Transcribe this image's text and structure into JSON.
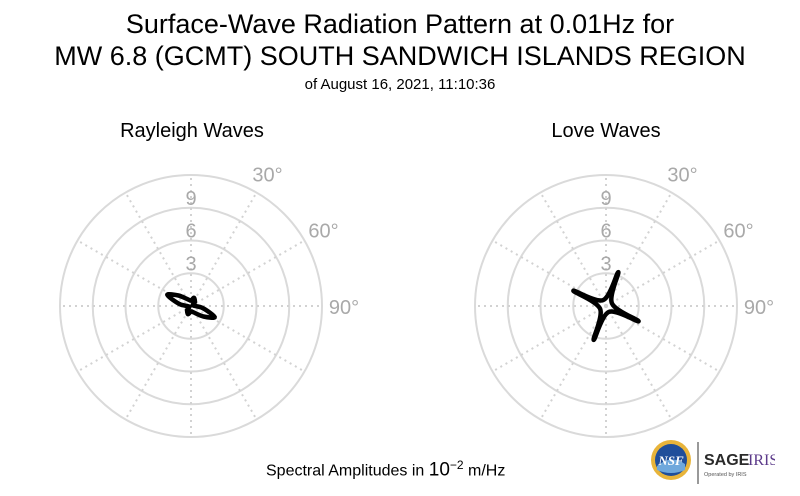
{
  "title": {
    "line1": "Surface-Wave Radiation Pattern at 0.01Hz for",
    "line2": "MW 6.8 (GCMT) SOUTH SANDWICH ISLANDS REGION",
    "line3": "of August 16, 2021, 11:10:36"
  },
  "footer": {
    "prefix": "Spectral Amplitudes in ",
    "base": "10",
    "exponent": "−2",
    "unit": " m/Hz"
  },
  "logos": {
    "nsf": "NSF",
    "sage": "SAGE",
    "iris": "IRIS",
    "operated": "Operated by IRIS"
  },
  "chart_data": [
    {
      "type": "polar",
      "title": "Rayleigh Waves",
      "radial_ticks": [
        3,
        6,
        9
      ],
      "radial_tick_labels": [
        "3",
        "6",
        "9"
      ],
      "angle_tick_labels": [
        "30°",
        "60°",
        "90°"
      ],
      "angle_ticks_deg": [
        30,
        60,
        90
      ],
      "rmax": 12,
      "grid": true,
      "series": [
        {
          "values": [
            {
              "azimuth": 0,
              "amplitude": 0.5
            },
            {
              "azimuth": 20,
              "amplitude": 0.8
            },
            {
              "azimuth": 45,
              "amplitude": 0.5
            },
            {
              "azimuth": 75,
              "amplitude": 0.2
            },
            {
              "azimuth": 100,
              "amplitude": 1.1
            },
            {
              "azimuth": 115,
              "amplitude": 2.4
            },
            {
              "azimuth": 130,
              "amplitude": 1.5
            },
            {
              "azimuth": 160,
              "amplitude": 0.6
            },
            {
              "azimuth": 180,
              "amplitude": 0.5
            },
            {
              "azimuth": 200,
              "amplitude": 0.8
            },
            {
              "azimuth": 225,
              "amplitude": 0.5
            },
            {
              "azimuth": 255,
              "amplitude": 0.2
            },
            {
              "azimuth": 280,
              "amplitude": 1.1
            },
            {
              "azimuth": 295,
              "amplitude": 2.4
            },
            {
              "azimuth": 310,
              "amplitude": 1.5
            },
            {
              "azimuth": 340,
              "amplitude": 0.6
            }
          ]
        }
      ]
    },
    {
      "type": "polar",
      "title": "Love Waves",
      "radial_ticks": [
        3,
        6,
        9
      ],
      "radial_tick_labels": [
        "3",
        "6",
        "9"
      ],
      "angle_tick_labels": [
        "30°",
        "60°",
        "90°"
      ],
      "angle_ticks_deg": [
        30,
        60,
        90
      ],
      "rmax": 12,
      "grid": true,
      "series": [
        {
          "values": [
            {
              "azimuth": 20,
              "amplitude": 3.3
            },
            {
              "azimuth": 65,
              "amplitude": 0.6
            },
            {
              "azimuth": 115,
              "amplitude": 3.3
            },
            {
              "azimuth": 155,
              "amplitude": 0.6
            },
            {
              "azimuth": 200,
              "amplitude": 3.3
            },
            {
              "azimuth": 245,
              "amplitude": 0.6
            },
            {
              "azimuth": 295,
              "amplitude": 3.3
            },
            {
              "azimuth": 335,
              "amplitude": 0.6
            }
          ]
        }
      ]
    }
  ]
}
